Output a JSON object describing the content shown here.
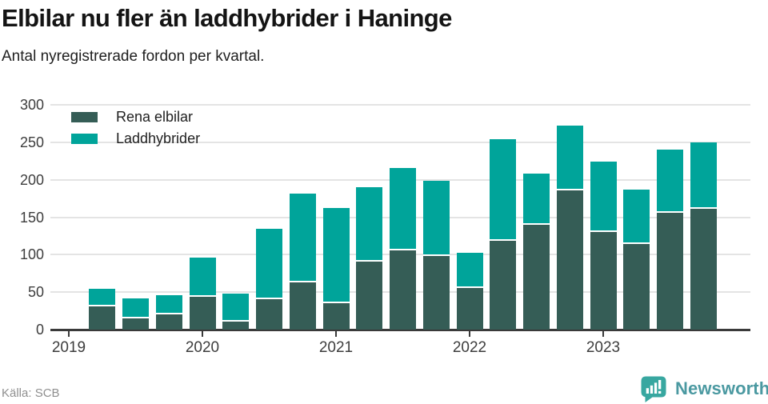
{
  "header": {
    "title": "Elbilar nu fler än laddhybrider i Haninge",
    "subtitle": "Antal nyregistrerade fordon per kvartal."
  },
  "footer": {
    "source": "Källa: SCB",
    "brand": "Newsworthy"
  },
  "colors": {
    "pure_electric": "#36594f",
    "pure_electric_hex_display": "#355d56",
    "plugin_hybrid": "#00a49a",
    "gridline": "#e4e4e4",
    "axis": "#3a3a3a",
    "brand_teal": "#38a7a0",
    "brand_text": "#4b99a1"
  },
  "chart_data": {
    "type": "bar",
    "stacked": true,
    "title": "Elbilar nu fler än laddhybrider i Haninge",
    "subtitle": "Antal nyregistrerade fordon per kvartal.",
    "categories": [
      "2019 Q2",
      "2019 Q3",
      "2019 Q4",
      "2020 Q1",
      "2020 Q2",
      "2020 Q3",
      "2020 Q4",
      "2021 Q1",
      "2021 Q2",
      "2021 Q3",
      "2021 Q4",
      "2022 Q1",
      "2022 Q2",
      "2022 Q3",
      "2022 Q4",
      "2023 Q1",
      "2023 Q2",
      "2023 Q3",
      "2023 Q4"
    ],
    "series": [
      {
        "name": "Rena elbilar",
        "color": "#355d56",
        "values": [
          31,
          15,
          20,
          44,
          11,
          41,
          63,
          35,
          91,
          106,
          98,
          56,
          118,
          140,
          186,
          130,
          114,
          156,
          161
        ]
      },
      {
        "name": "Laddhybrider",
        "color": "#00a49a",
        "values": [
          24,
          27,
          26,
          52,
          37,
          94,
          118,
          127,
          99,
          110,
          101,
          46,
          136,
          68,
          86,
          94,
          73,
          84,
          89
        ]
      }
    ],
    "totals": [
      55,
      42,
      46,
      96,
      48,
      135,
      181,
      162,
      190,
      216,
      199,
      102,
      254,
      208,
      272,
      224,
      187,
      240,
      250
    ],
    "x_tick_labels": [
      "2019",
      "2020",
      "2021",
      "2022",
      "2023"
    ],
    "xlabel": "",
    "ylabel": "",
    "ylim": [
      0,
      300
    ],
    "y_ticks": [
      0,
      50,
      100,
      150,
      200,
      250,
      300
    ],
    "grid": true,
    "legend_position": "top-left"
  }
}
